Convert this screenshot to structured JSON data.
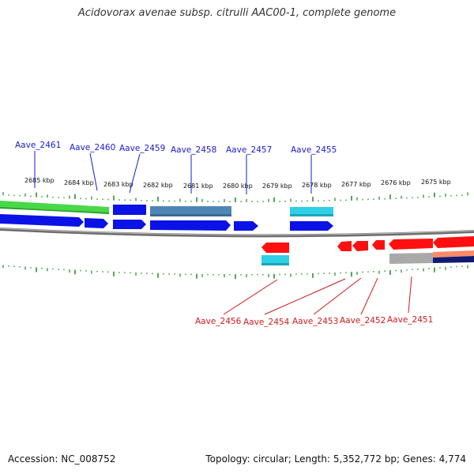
{
  "title": "Acidovorax avenae subsp. citrulli AAC00-1, complete genome",
  "footer": {
    "accession": "Accession: NC_008752",
    "topology": "Topology: circular; Length: 5,352,772 bp; Genes: 4,774"
  },
  "colors": {
    "forward_cds": "#0a12e6",
    "reverse_cds": "#ff1010",
    "feature_green": "#48d848",
    "feature_steel": "#4f86b6",
    "feature_cyan": "#2fd0e6",
    "feature_gray": "#a9a9a9",
    "tick_green": "#1a8a1a",
    "forward_label": "#1a1ad0",
    "reverse_label": "#d01a1a"
  },
  "axis": {
    "tick_labels": [
      "2685 kbp",
      "2684 kbp",
      "2683 kbp",
      "2682 kbp",
      "2681 kbp",
      "2680 kbp",
      "2679 kbp",
      "2678 kbp",
      "2677 kbp",
      "2676 kbp",
      "2675 kbp"
    ]
  },
  "forward_labels": [
    "Aave_2461",
    "Aave_2460",
    "Aave_2459",
    "Aave_2458",
    "Aave_2457",
    "Aave_2455"
  ],
  "reverse_labels": [
    "Aave_2456",
    "Aave_2454",
    "Aave_2453",
    "Aave_2452",
    "Aave_2451"
  ]
}
